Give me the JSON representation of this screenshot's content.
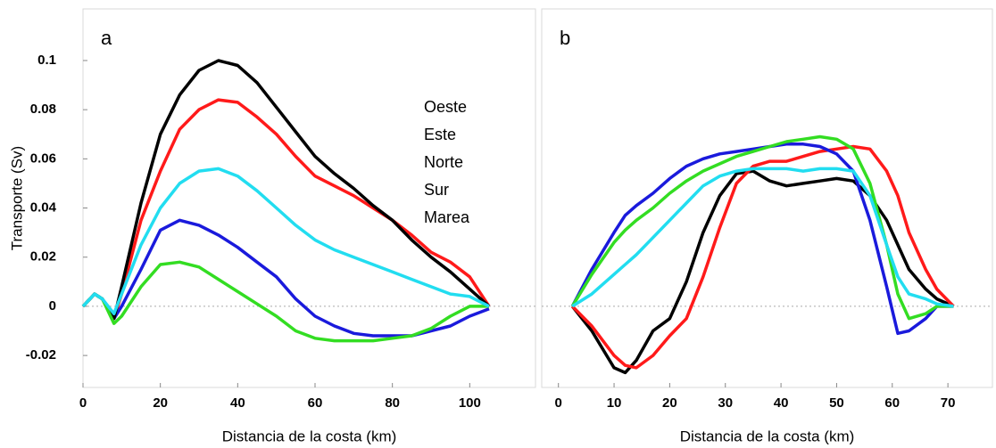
{
  "chart_data": [
    {
      "type": "line",
      "title": "a",
      "x_label": "Distancia de la costa (km)",
      "y_label": "Transporte (Sv)",
      "x": [
        0,
        3,
        5,
        8,
        10,
        15,
        20,
        25,
        30,
        35,
        40,
        45,
        50,
        55,
        60,
        65,
        70,
        75,
        80,
        85,
        90,
        95,
        100,
        105
      ],
      "xlim": [
        0,
        117
      ],
      "xticks": [
        0,
        20,
        40,
        60,
        80,
        100
      ],
      "ylim": [
        -0.033,
        0.121
      ],
      "yticks": [
        -0.02,
        0,
        0.02,
        0.04,
        0.06,
        0.08,
        0.1
      ],
      "zero_line": true,
      "series": [
        {
          "name": "Oeste",
          "color": "#ff1a1a",
          "values": [
            0,
            0.005,
            0.003,
            -0.005,
            0.005,
            0.035,
            0.055,
            0.072,
            0.08,
            0.084,
            0.083,
            0.077,
            0.07,
            0.061,
            0.053,
            0.049,
            0.045,
            0.04,
            0.035,
            0.029,
            0.022,
            0.018,
            0.012,
            0
          ]
        },
        {
          "name": "Este",
          "color": "#1a1adc",
          "values": [
            0,
            0.005,
            0.003,
            -0.005,
            0,
            0.015,
            0.031,
            0.035,
            0.033,
            0.029,
            0.024,
            0.018,
            0.012,
            0.003,
            -0.004,
            -0.008,
            -0.011,
            -0.012,
            -0.012,
            -0.012,
            -0.01,
            -0.008,
            -0.004,
            -0.001
          ]
        },
        {
          "name": "Norte",
          "color": "#000000",
          "values": [
            0,
            0.005,
            0.003,
            -0.005,
            0.008,
            0.042,
            0.07,
            0.086,
            0.096,
            0.1,
            0.098,
            0.091,
            0.081,
            0.071,
            0.061,
            0.054,
            0.048,
            0.041,
            0.035,
            0.027,
            0.02,
            0.014,
            0.007,
            0
          ]
        },
        {
          "name": "Sur",
          "color": "#33dd22",
          "values": [
            0,
            0.005,
            0.003,
            -0.007,
            -0.004,
            0.008,
            0.017,
            0.018,
            0.016,
            0.011,
            0.006,
            0.001,
            -0.004,
            -0.01,
            -0.013,
            -0.014,
            -0.014,
            -0.014,
            -0.013,
            -0.012,
            -0.009,
            -0.004,
            0,
            0
          ]
        },
        {
          "name": "Marea",
          "color": "#22ddf0",
          "values": [
            0,
            0.005,
            0.003,
            -0.003,
            0.005,
            0.025,
            0.04,
            0.05,
            0.055,
            0.056,
            0.053,
            0.047,
            0.04,
            0.033,
            0.027,
            0.023,
            0.02,
            0.017,
            0.014,
            0.011,
            0.008,
            0.005,
            0.004,
            0
          ]
        }
      ]
    },
    {
      "type": "line",
      "title": "b",
      "x_label": "Distancia de la costa (km)",
      "x": [
        2.5,
        6,
        10,
        12,
        14,
        17,
        20,
        23,
        26,
        29,
        32,
        35,
        38,
        41,
        44,
        47,
        50,
        53,
        56,
        59,
        61,
        63,
        66,
        68,
        71
      ],
      "xlim": [
        -3,
        78
      ],
      "xticks": [
        0,
        10,
        20,
        30,
        40,
        50,
        60,
        70
      ],
      "ylim": [
        -0.033,
        0.121
      ],
      "zero_line": true,
      "series": [
        {
          "color": "#000000",
          "values": [
            0,
            -0.01,
            -0.025,
            -0.027,
            -0.022,
            -0.01,
            -0.005,
            0.01,
            0.03,
            0.045,
            0.054,
            0.055,
            0.051,
            0.049,
            0.05,
            0.051,
            0.052,
            0.051,
            0.045,
            0.035,
            0.025,
            0.015,
            0.007,
            0.003,
            0
          ]
        },
        {
          "color": "#ff1a1a",
          "values": [
            0,
            -0.008,
            -0.02,
            -0.024,
            -0.025,
            -0.02,
            -0.012,
            -0.005,
            0.012,
            0.032,
            0.05,
            0.057,
            0.059,
            0.059,
            0.061,
            0.063,
            0.064,
            0.065,
            0.064,
            0.055,
            0.045,
            0.03,
            0.015,
            0.007,
            0
          ]
        },
        {
          "color": "#1a1adc",
          "values": [
            0,
            0.015,
            0.03,
            0.037,
            0.041,
            0.046,
            0.052,
            0.057,
            0.06,
            0.062,
            0.063,
            0.064,
            0.065,
            0.066,
            0.066,
            0.065,
            0.062,
            0.055,
            0.035,
            0.008,
            -0.011,
            -0.01,
            -0.005,
            0,
            0
          ]
        },
        {
          "color": "#33dd22",
          "values": [
            0,
            0.013,
            0.026,
            0.031,
            0.035,
            0.04,
            0.046,
            0.051,
            0.055,
            0.058,
            0.061,
            0.063,
            0.065,
            0.067,
            0.068,
            0.069,
            0.068,
            0.064,
            0.05,
            0.025,
            0.005,
            -0.005,
            -0.003,
            0,
            0
          ]
        },
        {
          "color": "#22ddf0",
          "values": [
            0,
            0.005,
            0.013,
            0.017,
            0.021,
            0.028,
            0.035,
            0.042,
            0.049,
            0.053,
            0.055,
            0.056,
            0.056,
            0.056,
            0.055,
            0.056,
            0.056,
            0.055,
            0.045,
            0.025,
            0.012,
            0.005,
            0.003,
            0.001,
            0
          ]
        }
      ]
    }
  ]
}
